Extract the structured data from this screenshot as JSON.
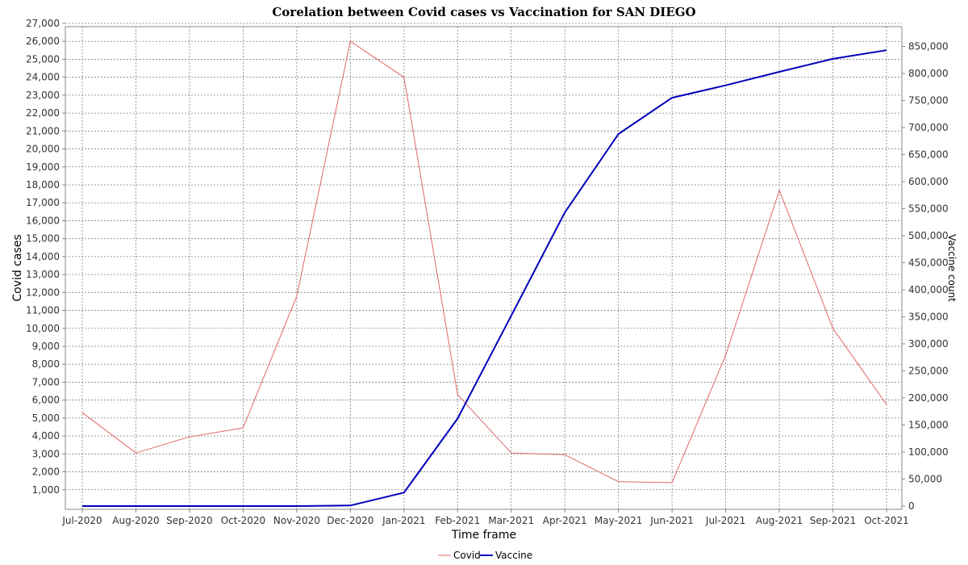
{
  "chart_data": {
    "type": "line",
    "title": "Corelation between Covid cases vs Vaccination for SAN DIEGO",
    "xlabel": "Time frame",
    "ylabel": "Covid cases",
    "y2label": "Vaccine count",
    "categories": [
      "Jul-2020",
      "Aug-2020",
      "Sep-2020",
      "Oct-2020",
      "Nov-2020",
      "Dec-2020",
      "Jan-2021",
      "Feb-2021",
      "Mar-2021",
      "Apr-2021",
      "May-2021",
      "Jun-2021",
      "Jul-2021",
      "Aug-2021",
      "Sep-2021",
      "Oct-2021"
    ],
    "ylim": [
      0,
      27000
    ],
    "y2lim": [
      0,
      880000
    ],
    "y_ticks": [
      1000,
      2000,
      3000,
      4000,
      5000,
      6000,
      7000,
      8000,
      9000,
      10000,
      11000,
      12000,
      13000,
      14000,
      15000,
      16000,
      17000,
      18000,
      19000,
      20000,
      21000,
      22000,
      23000,
      24000,
      25000,
      26000,
      27000
    ],
    "y2_ticks": [
      0,
      50000,
      100000,
      150000,
      200000,
      250000,
      300000,
      350000,
      400000,
      450000,
      500000,
      550000,
      600000,
      650000,
      700000,
      750000,
      800000,
      850000
    ],
    "grid": true,
    "legend_position": "bottom",
    "series": [
      {
        "name": "Covid",
        "axis": "left",
        "color": "#e06666",
        "values": [
          5300,
          3050,
          3950,
          4450,
          11800,
          26000,
          24000,
          6300,
          3050,
          2950,
          1450,
          1400,
          8500,
          17700,
          10000,
          5750
        ]
      },
      {
        "name": "Vaccine",
        "axis": "right",
        "color": "#0000bb",
        "values": [
          0,
          0,
          0,
          0,
          0,
          1000,
          25000,
          162000,
          352000,
          543000,
          688000,
          755000,
          778000,
          803000,
          827000,
          843000
        ]
      }
    ]
  }
}
